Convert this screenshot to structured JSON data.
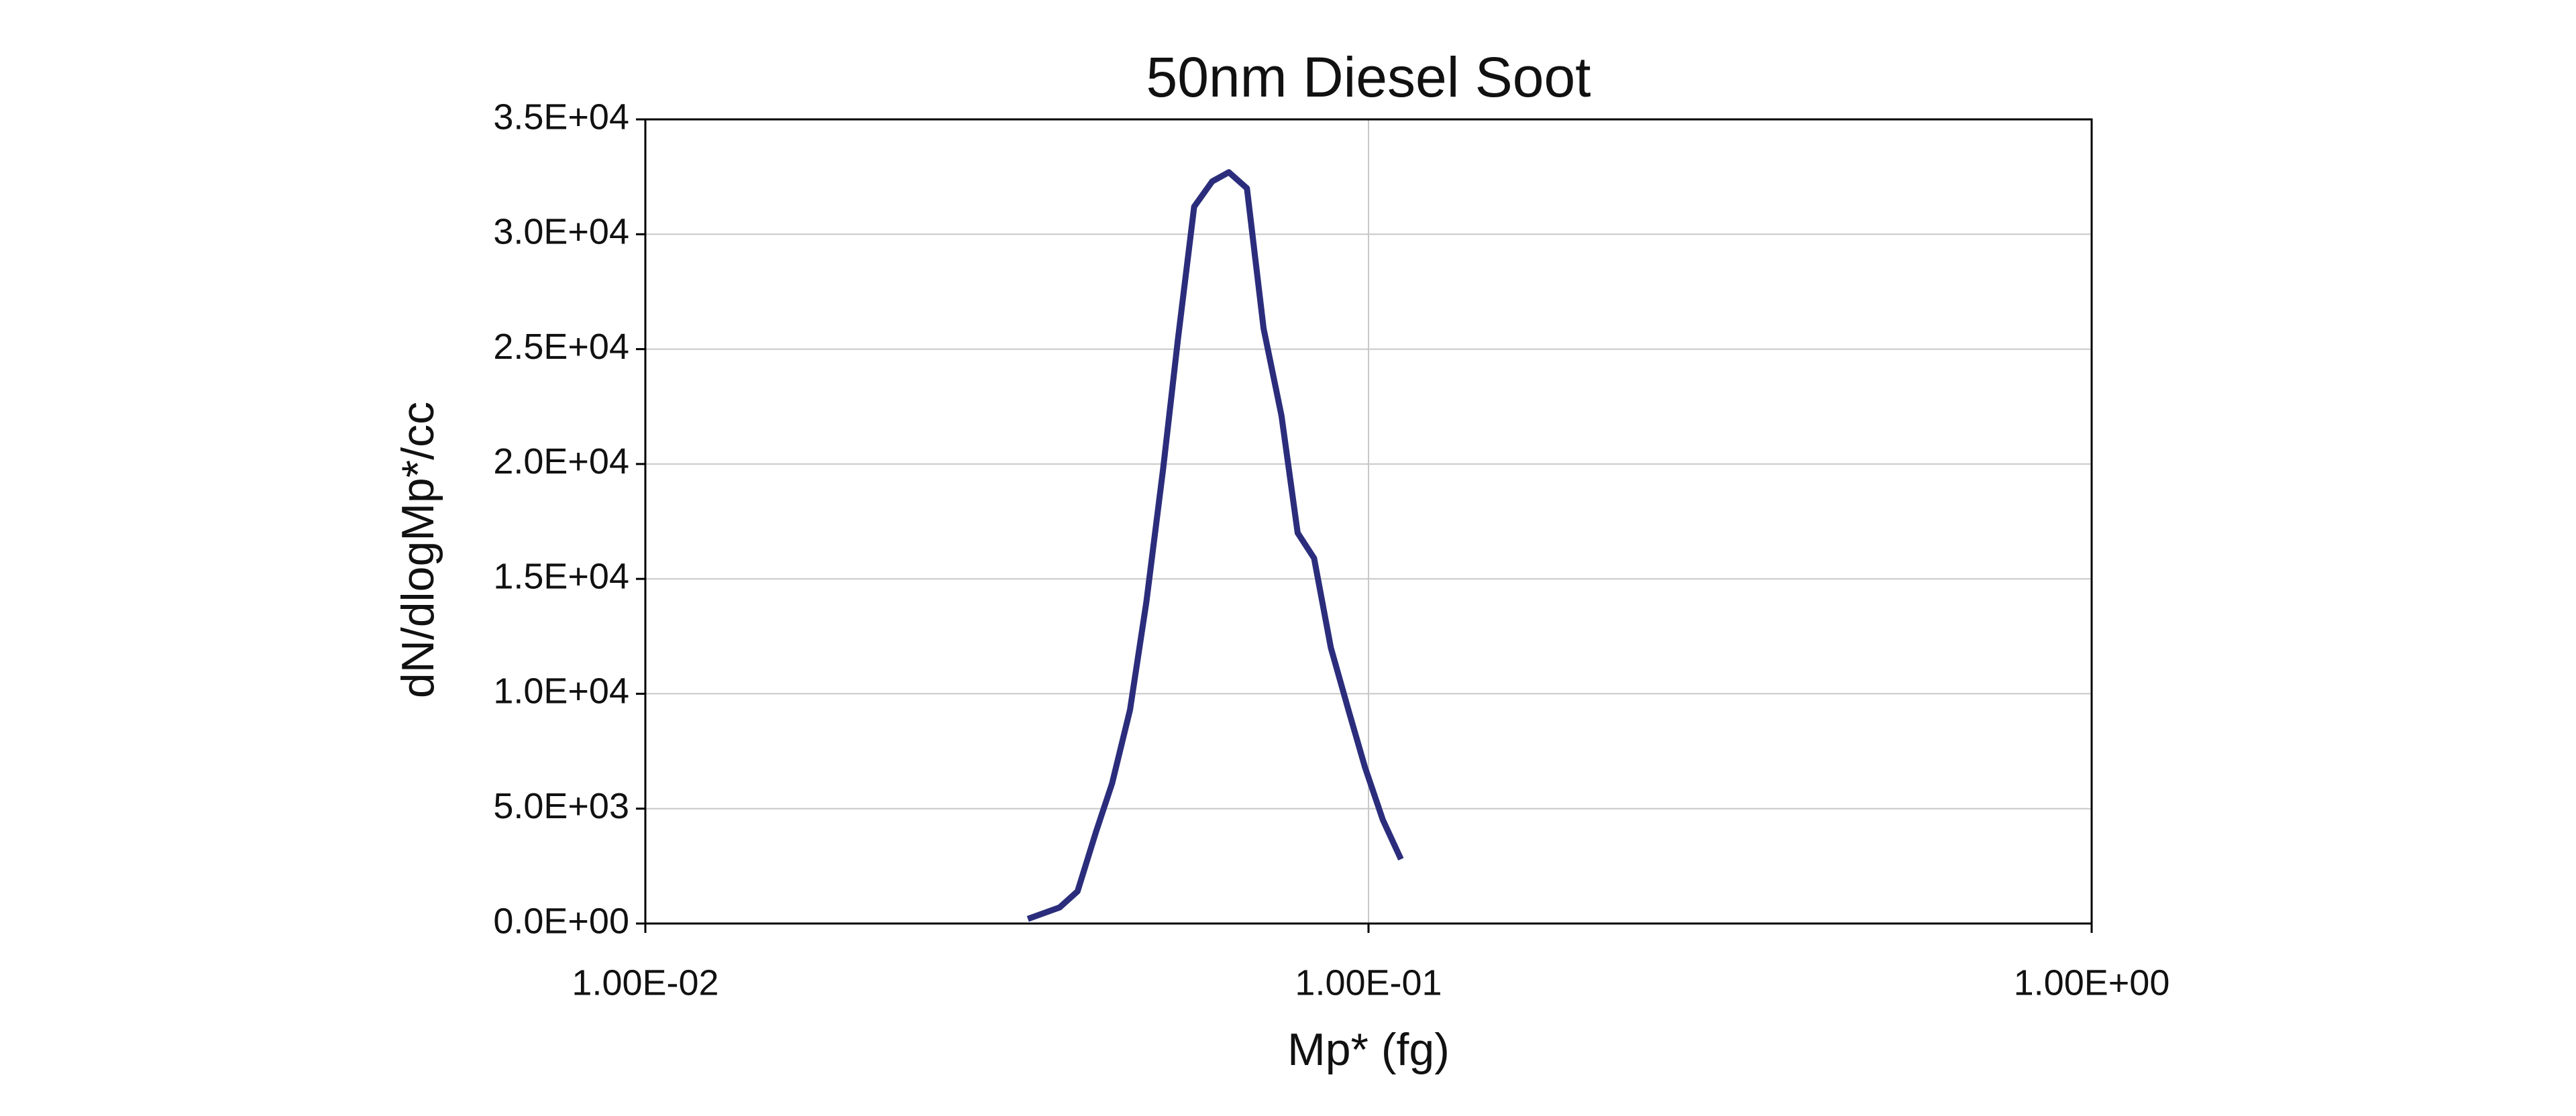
{
  "chart_data": {
    "type": "line",
    "title": "50nm Diesel Soot",
    "xlabel": "Mp* (fg)",
    "ylabel": "dN/dlogMp*/cc",
    "xscale": "log",
    "grid": true,
    "color": "#2b2d7c",
    "x": [
      0.0338,
      0.0374,
      0.0396,
      0.042,
      0.0442,
      0.0468,
      0.0493,
      0.052,
      0.0545,
      0.0574,
      0.0608,
      0.0641,
      0.0679,
      0.0716,
      0.0758,
      0.0798,
      0.0841,
      0.0887,
      0.094,
      0.0989,
      0.1047,
      0.1109
    ],
    "values": [
      200,
      700,
      1400,
      4000,
      6100,
      9300,
      14000,
      19800,
      25400,
      31200,
      32300,
      32700,
      32000,
      25900,
      22100,
      17000,
      15900,
      12000,
      9200,
      6800,
      4500,
      2800
    ],
    "xlim": [
      0.01,
      1
    ],
    "xticks": [
      {
        "value": 0.01,
        "label": "1.00E-02"
      },
      {
        "value": 0.1,
        "label": "1.00E-01"
      },
      {
        "value": 1,
        "label": "1.00E+00"
      }
    ],
    "ylim": [
      0,
      35000
    ],
    "yticks": [
      {
        "value": 0,
        "label": "0.0E+00"
      },
      {
        "value": 5000,
        "label": "5.0E+03"
      },
      {
        "value": 10000,
        "label": "1.0E+04"
      },
      {
        "value": 15000,
        "label": "1.5E+04"
      },
      {
        "value": 20000,
        "label": "2.0E+04"
      },
      {
        "value": 25000,
        "label": "2.5E+04"
      },
      {
        "value": 30000,
        "label": "3.0E+04"
      },
      {
        "value": 35000,
        "label": "3.5E+04"
      }
    ]
  }
}
